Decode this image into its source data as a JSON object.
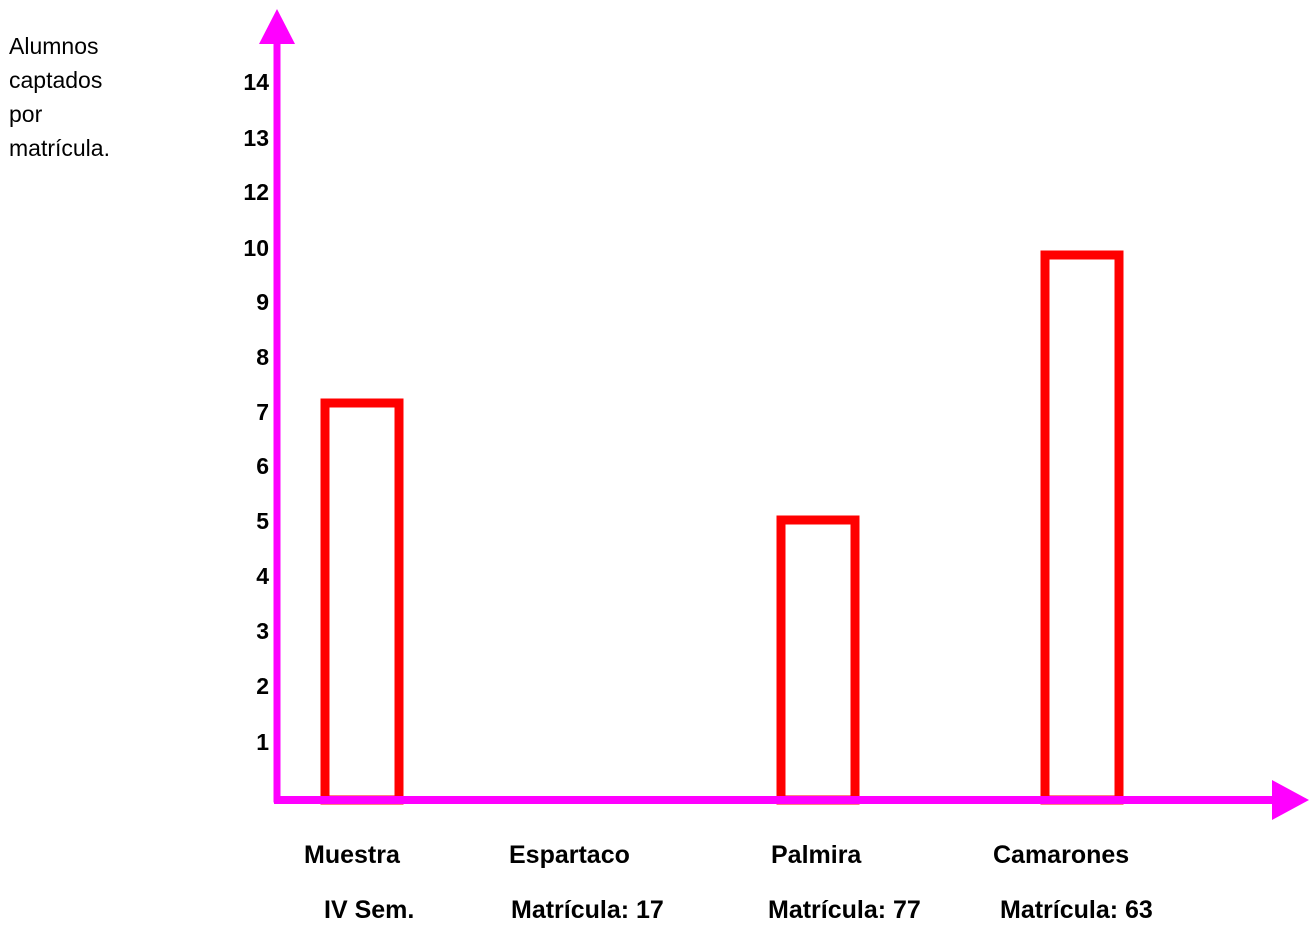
{
  "chart_data": {
    "type": "bar",
    "ylabel_lines": [
      "Alumnos",
      "captados",
      "por",
      "matrícula."
    ],
    "y_tick_labels": [
      "14",
      "13",
      "12",
      "10",
      "9",
      "8",
      "7",
      "6",
      "5",
      "4",
      "3",
      "2",
      "1"
    ],
    "categories": [
      "Muestra",
      "Espartaco",
      "Palmira",
      "Camarones"
    ],
    "sublabels": [
      "IV Sem.",
      "Matrícula: 17",
      "Matrícula: 77",
      "Matrícula: 63"
    ],
    "values": [
      7,
      0,
      5,
      10
    ],
    "colors": {
      "axis": "#ff00ff",
      "bar_outline": "#ff0000"
    }
  }
}
